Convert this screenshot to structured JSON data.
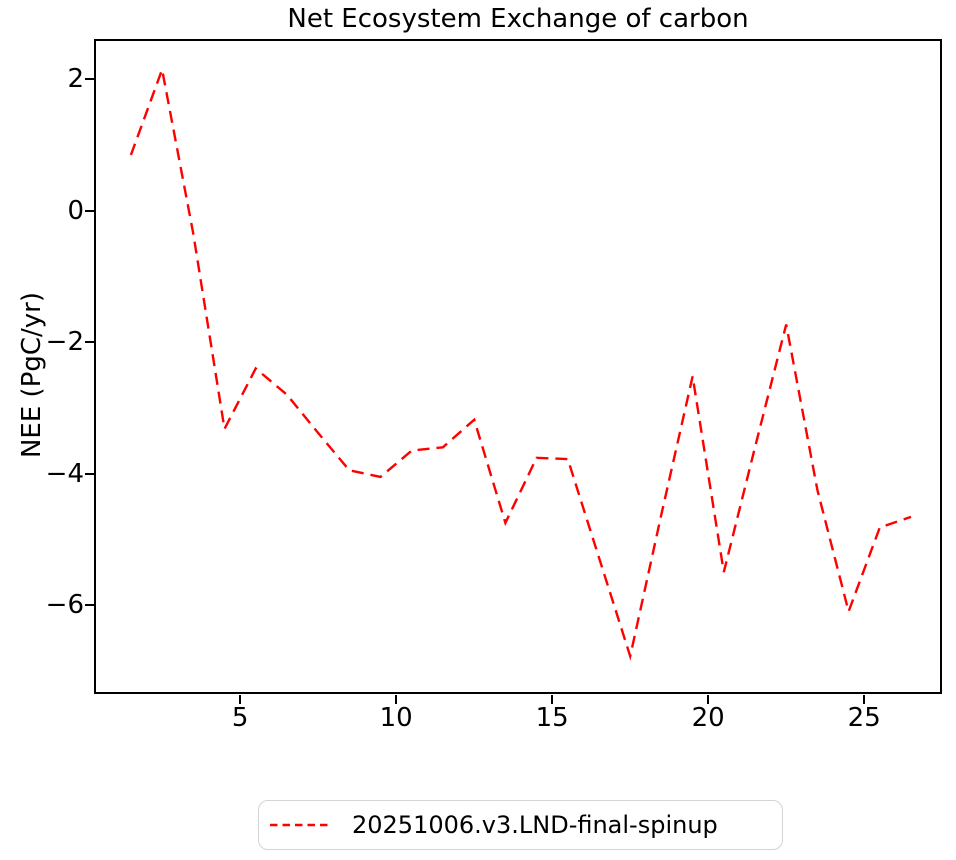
{
  "title": "Net Ecosystem Exchange of carbon",
  "colors": {
    "line": "#ff0000",
    "text": "#000000",
    "axis": "#000000",
    "legend_border": "#d4d4d4",
    "background": "#ffffff"
  },
  "legend": {
    "label": "20251006.v3.LND-final-spinup",
    "position": "below-axes-center"
  },
  "chart_data": {
    "type": "line",
    "title": "Net Ecosystem Exchange of carbon",
    "xlabel": "",
    "ylabel": "NEE (PgC/yr)",
    "grid": false,
    "line_style": "dashed",
    "line_color": "#ff0000",
    "xlim": [
      0.35,
      27.46
    ],
    "ylim": [
      -7.34,
      2.6
    ],
    "xticks": [
      5,
      10,
      15,
      20,
      25
    ],
    "yticks": [
      2,
      0,
      -2,
      -4,
      -6
    ],
    "series": [
      {
        "name": "20251006.v3.LND-final-spinup",
        "color": "#ff0000",
        "style": "dashed",
        "x": [
          1.5,
          2.5,
          3.5,
          4.5,
          5.5,
          6.5,
          7.5,
          8.5,
          9.5,
          10.5,
          11.5,
          12.5,
          13.5,
          14.5,
          15.5,
          16.5,
          17.5,
          18.5,
          19.5,
          20.5,
          21.5,
          22.5,
          23.5,
          24.5,
          25.5,
          26.5
        ],
        "y": [
          0.85,
          2.15,
          -0.35,
          -3.32,
          -2.4,
          -2.8,
          -3.38,
          -3.95,
          -4.05,
          -3.65,
          -3.6,
          -3.18,
          -4.75,
          -3.76,
          -3.78,
          -5.28,
          -6.78,
          -4.62,
          -2.52,
          -5.5,
          -3.6,
          -1.73,
          -4.25,
          -6.1,
          -4.82,
          -4.66
        ]
      }
    ]
  }
}
